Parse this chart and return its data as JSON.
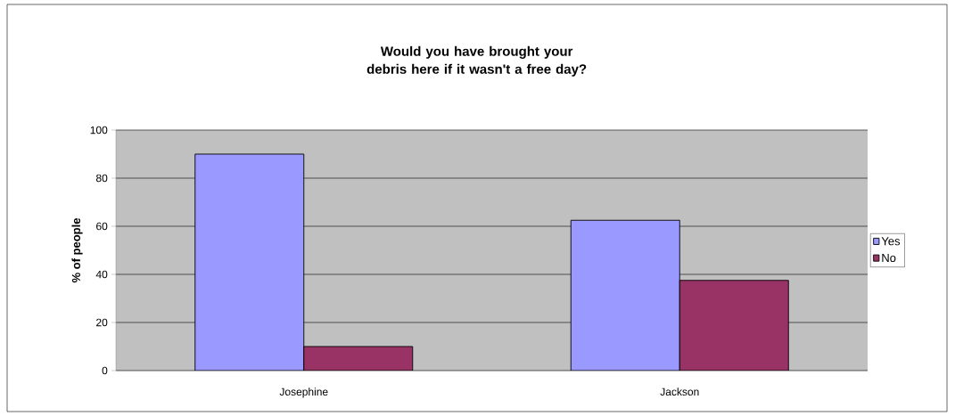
{
  "chart_data": {
    "type": "bar",
    "title": "Would you have brought your debris here if it wasn't a free day?",
    "ylabel": "% of people",
    "categories": [
      "Josephine",
      "Jackson"
    ],
    "series": [
      {
        "name": "Yes",
        "color": "#9999ff",
        "values": [
          90,
          62.5
        ]
      },
      {
        "name": "No",
        "color": "#993366",
        "values": [
          10,
          37.5
        ]
      }
    ],
    "ylim": [
      0,
      100
    ],
    "yticks": [
      0,
      20,
      40,
      60,
      80,
      100
    ],
    "grid": "y",
    "legend": "right"
  }
}
